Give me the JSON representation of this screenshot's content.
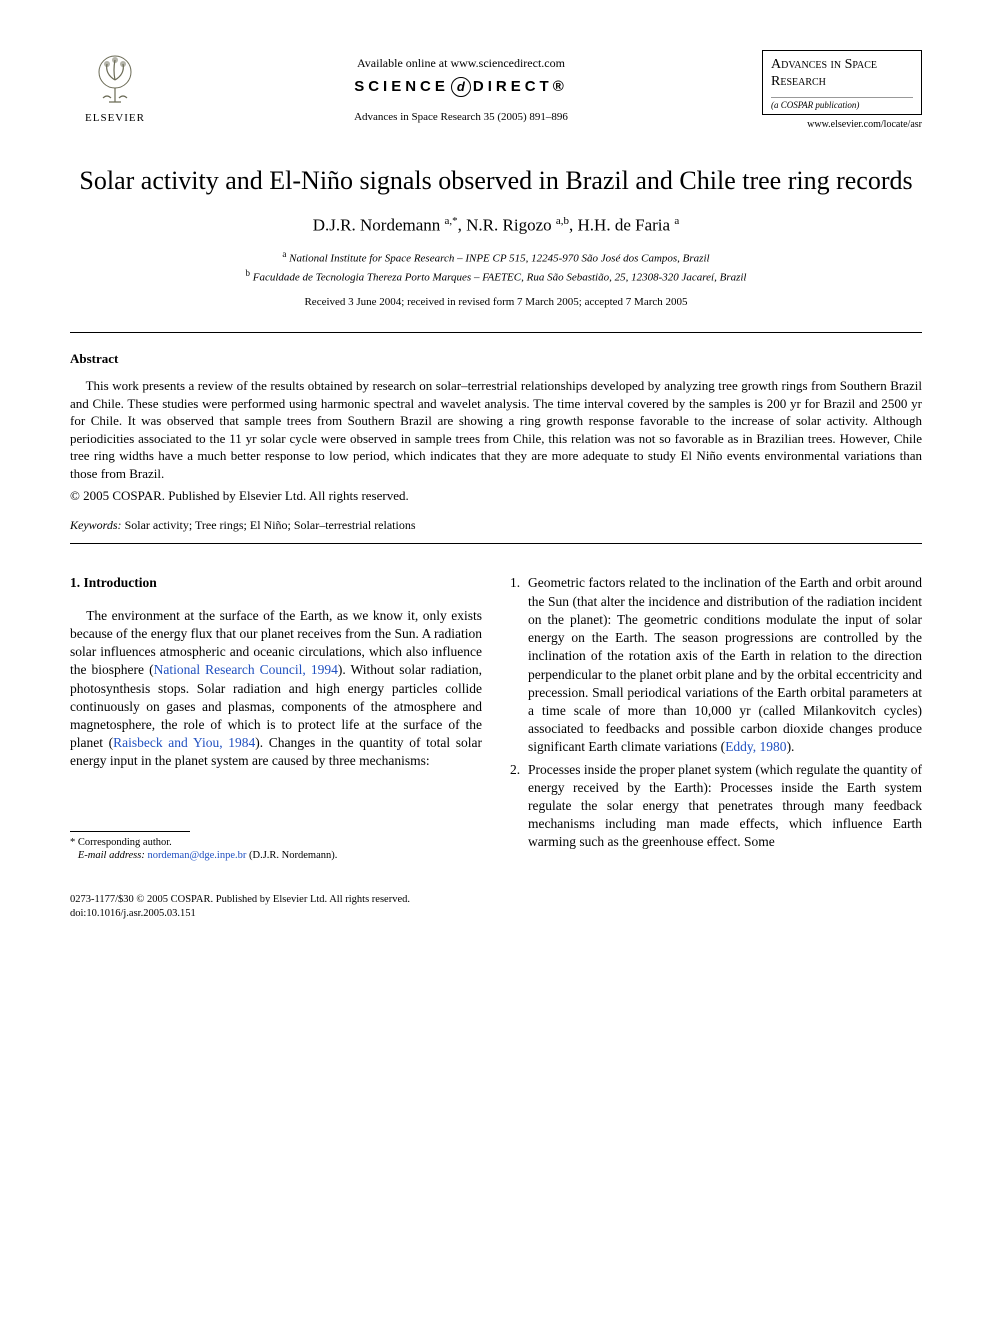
{
  "header": {
    "publisher_label": "ELSEVIER",
    "available_text": "Available online at www.sciencedirect.com",
    "science_direct_left": "SCIENCE",
    "science_direct_right": "DIRECT®",
    "journal_reference": "Advances in Space Research 35 (2005) 891–896",
    "journal_box_title": "Advances in Space Research",
    "journal_box_sub": "(a COSPAR publication)",
    "journal_url": "www.elsevier.com/locate/asr"
  },
  "title": "Solar activity and El-Niño signals observed in Brazil and Chile tree ring records",
  "authors_html": "D.J.R. Nordemann <sup>a,*</sup>, N.R. Rigozo <sup>a,b</sup>, H.H. de Faria <sup>a</sup>",
  "affiliations": [
    "<sup>a</sup> National Institute for Space Research – INPE CP 515, 12245-970 São José dos Campos, Brazil",
    "<sup>b</sup> Faculdade de Tecnologia Thereza Porto Marques – FAETEC, Rua São Sebastião, 25, 12308-320 Jacareí, Brazil"
  ],
  "dates": "Received 3 June 2004; received in revised form 7 March 2005; accepted 7 March 2005",
  "abstract": {
    "heading": "Abstract",
    "body": "This work presents a review of the results obtained by research on solar–terrestrial relationships developed by analyzing tree growth rings from Southern Brazil and Chile. These studies were performed using harmonic spectral and wavelet analysis. The time interval covered by the samples is 200 yr for Brazil and 2500 yr for Chile. It was observed that sample trees from Southern Brazil are showing a ring growth response favorable to the increase of solar activity. Although periodicities associated to the 11 yr solar cycle were observed in sample trees from Chile, this relation was not so favorable as in Brazilian trees. However, Chile tree ring widths have a much better response to low period, which indicates that they are more adequate to study El Niño events environmental variations than those from Brazil.",
    "copyright": "© 2005 COSPAR. Published by Elsevier Ltd. All rights reserved."
  },
  "keywords": {
    "label": "Keywords:",
    "text": " Solar activity; Tree rings; El Niño; Solar–terrestrial relations"
  },
  "section1": {
    "heading": "1. Introduction",
    "para1_pre": "The environment at the surface of the Earth, as we know it, only exists because of the energy flux that our planet receives from the Sun. A radiation solar influences atmospheric and oceanic circulations, which also influence the biosphere (",
    "ref1": "National Research Council, 1994",
    "para1_mid1": "). Without solar radiation, photosynthesis stops. Solar radiation and high energy particles collide continuously on gases and plasmas, components of the atmosphere and magnetosphere, the role of which is to protect life at the surface of the planet (",
    "ref2": "Raisbeck and Yiou, 1984",
    "para1_post": "). Changes in the quantity of total solar energy input in the planet system are caused by three mechanisms:"
  },
  "list_items": [
    {
      "num": "1.",
      "pre": "Geometric factors related to the inclination of the Earth and orbit around the Sun (that alter the incidence and distribution of the radiation incident on the planet): The geometric conditions modulate the input of solar energy on the Earth. The season progressions are controlled by the inclination of the rotation axis of the Earth in relation to the direction perpendicular to the planet orbit plane and by the orbital eccentricity and precession. Small periodical variations of the Earth orbital parameters at a time scale of more than 10,000 yr (called Milankovitch cycles) associated to feedbacks and possible carbon dioxide changes produce significant Earth climate variations (",
      "ref": "Eddy, 1980",
      "post": ")."
    },
    {
      "num": "2.",
      "pre": "Processes inside the proper planet system (which regulate the quantity of energy received by the Earth): Processes inside the Earth system regulate the solar energy that penetrates through many feedback mechanisms including man made effects, which influence Earth warming such as the greenhouse effect. Some",
      "ref": "",
      "post": ""
    }
  ],
  "footnote": {
    "corr": "* Corresponding author.",
    "email_label": "E-mail address:",
    "email": "nordeman@dge.inpe.br",
    "email_name": " (D.J.R. Nordemann)."
  },
  "footer": {
    "line1": "0273-1177/$30 © 2005 COSPAR. Published by Elsevier Ltd. All rights reserved.",
    "line2": "doi:10.1016/j.asr.2005.03.151"
  },
  "colors": {
    "text": "#000000",
    "link": "#2050c0",
    "background": "#ffffff"
  },
  "typography": {
    "body_font": "Georgia, Times New Roman, serif",
    "title_size_pt": 20,
    "body_size_pt": 10,
    "abstract_size_pt": 9.5
  }
}
